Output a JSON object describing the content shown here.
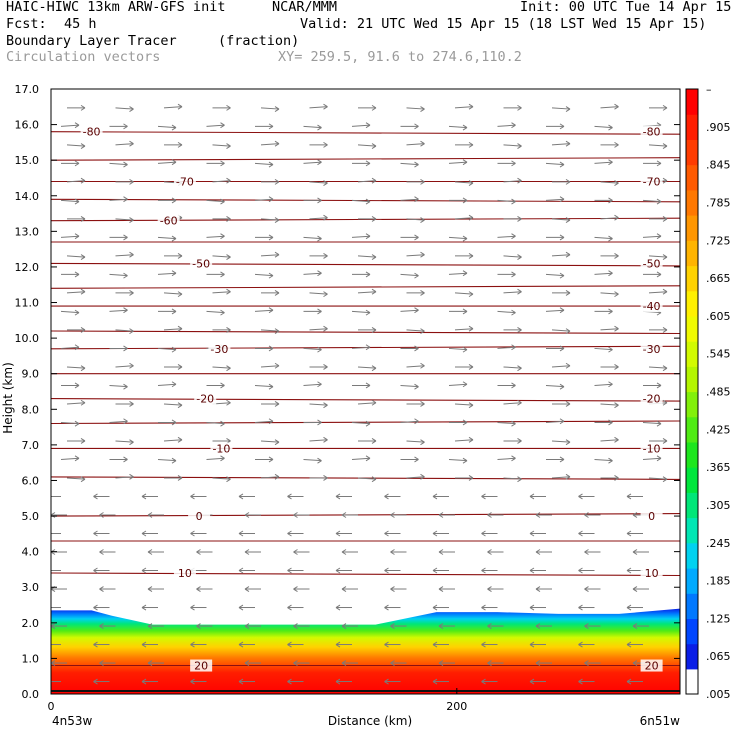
{
  "header": {
    "model": "HAIC-HIWC 13km ARW-GFS init",
    "org": "NCAR/MMM",
    "init": "Init: 00 UTC Tue 14 Apr 15",
    "fcst_label": "Fcst:",
    "fcst_value": "45 h",
    "valid": "Valid: 21 UTC Wed 15 Apr 15 (18 LST Wed 15 Apr 15)",
    "field_name": "Boundary Layer Tracer",
    "field_units": "(fraction)",
    "vector_label": "Circulation vectors",
    "xy_label": "XY= 259.5, 91.6 to 274.6,110.2"
  },
  "chart_data": {
    "type": "heatmap",
    "xlabel": "Distance (km)",
    "ylabel": "Height (km)",
    "xlim": [
      0,
      310
    ],
    "ylim": [
      0,
      17
    ],
    "x_ticks": [
      {
        "value": 0,
        "label": "0"
      },
      {
        "value": 200,
        "label": "200"
      }
    ],
    "y_ticks": [
      {
        "value": 0,
        "label": "0.0"
      },
      {
        "value": 1,
        "label": "1.0"
      },
      {
        "value": 2,
        "label": "2.0"
      },
      {
        "value": 3,
        "label": "3.0"
      },
      {
        "value": 4,
        "label": "4.0"
      },
      {
        "value": 5,
        "label": "5.0"
      },
      {
        "value": 6,
        "label": "6.0"
      },
      {
        "value": 7,
        "label": "7.0"
      },
      {
        "value": 8,
        "label": "8.0"
      },
      {
        "value": 9,
        "label": "9.0"
      },
      {
        "value": 10,
        "label": "10.0"
      },
      {
        "value": 11,
        "label": "11.0"
      },
      {
        "value": 12,
        "label": "12.0"
      },
      {
        "value": 13,
        "label": "13.0"
      },
      {
        "value": 14,
        "label": "14.0"
      },
      {
        "value": 15,
        "label": "15.0"
      },
      {
        "value": 16,
        "label": "16.0"
      },
      {
        "value": 17,
        "label": "17.0"
      }
    ],
    "x_endpoints": {
      "left": "4n53w",
      "right": "6n51w"
    },
    "colorbar": {
      "levels": [
        0.005,
        0.035,
        0.065,
        0.095,
        0.125,
        0.155,
        0.185,
        0.215,
        0.245,
        0.275,
        0.305,
        0.335,
        0.365,
        0.395,
        0.425,
        0.455,
        0.485,
        0.515,
        0.545,
        0.575,
        0.605,
        0.635,
        0.665,
        0.695,
        0.725,
        0.755,
        0.785,
        0.815,
        0.845,
        0.875,
        0.905,
        0.935,
        0.965
      ],
      "labels": [
        "–",
        ".905",
        ".845",
        ".785",
        ".725",
        ".665",
        ".605",
        ".545",
        ".485",
        ".425",
        ".365",
        ".305",
        ".245",
        ".185",
        ".125",
        ".065",
        ".005"
      ],
      "colors": [
        "#ffffff",
        "#0a1ee6",
        "#0046ff",
        "#0078ff",
        "#00aaff",
        "#00d2f0",
        "#00e6b4",
        "#00e678",
        "#00e63c",
        "#1ee61e",
        "#50eb14",
        "#82f00a",
        "#b4f500",
        "#d2fa00",
        "#f0fa00",
        "#fff000",
        "#ffd200",
        "#ffb400",
        "#ff9600",
        "#ff7800",
        "#ff5a00",
        "#ff3c00",
        "#ff1e00",
        "#ff0000"
      ]
    },
    "temperature_isotherms": [
      {
        "label": "-80",
        "height_km": 15.8,
        "label_x_km": [
          20,
          296
        ]
      },
      {
        "label": "-70",
        "height_km": 14.4,
        "label_x_km": [
          66,
          296
        ]
      },
      {
        "label": "-60",
        "height_km": 13.3,
        "label_x_km": [
          58
        ]
      },
      {
        "label": "-50",
        "height_km": 12.1,
        "label_x_km": [
          74,
          296
        ]
      },
      {
        "label": "-40",
        "height_km": 10.9,
        "label_x_km": [
          296
        ]
      },
      {
        "label": "-30",
        "height_km": 9.7,
        "label_x_km": [
          83,
          296
        ]
      },
      {
        "label": "-20",
        "height_km": 8.3,
        "label_x_km": [
          76,
          296
        ]
      },
      {
        "label": "-10",
        "height_km": 6.9,
        "label_x_km": [
          84,
          296
        ]
      },
      {
        "label": "0",
        "height_km": 5.0,
        "label_x_km": [
          73,
          296
        ]
      },
      {
        "label": "10",
        "height_km": 3.4,
        "label_x_km": [
          66,
          296
        ]
      },
      {
        "label": "20",
        "height_km": 0.8,
        "label_x_km": [
          74,
          296
        ]
      }
    ],
    "unlabeled_isotherm_heights_km": [
      15.0,
      13.9,
      12.7,
      11.4,
      10.2,
      9.0,
      7.6,
      6.1,
      4.3
    ],
    "boundary_layer": {
      "top_height_km": [
        2.35,
        2.35,
        2.2,
        1.95,
        1.95,
        1.95,
        1.95,
        1.95,
        2.3,
        2.3,
        2.25,
        2.25,
        2.35,
        2.4
      ],
      "top_x_km": [
        0,
        20,
        30,
        50,
        80,
        120,
        160,
        145,
        190,
        220,
        250,
        280,
        300,
        310
      ]
    }
  }
}
